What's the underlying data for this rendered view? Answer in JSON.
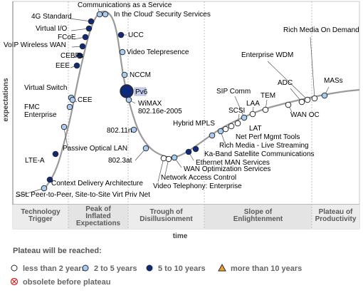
{
  "chart_data": {
    "type": "scatter",
    "title": "",
    "xlabel": "time",
    "ylabel": "expectations",
    "phases": [
      "Technology\nTrigger",
      "Peak of\nInflated\nExpectations",
      "Trough of\nDisillusionment",
      "Slope of\nEnlightenment",
      "Plateau of\nProductivity"
    ],
    "legend": {
      "title": "Plateau will be reached:",
      "items": [
        {
          "key": "lt2",
          "label": "less than 2 years",
          "marker": "circle",
          "color": "#ffffff"
        },
        {
          "key": "2to5",
          "label": "2 to 5 years",
          "marker": "circle",
          "color": "#a9cdf0"
        },
        {
          "key": "5to10",
          "label": "5 to 10 years",
          "marker": "circle",
          "color": "#0f2a7a"
        },
        {
          "key": "gt10",
          "label": "more than 10 years",
          "marker": "triangle",
          "color": "#f0a030"
        },
        {
          "key": "obsolete",
          "label": "obsolete before plateau",
          "marker": "x-circle",
          "color": "#d02020"
        }
      ]
    },
    "points": [
      {
        "label": "SSL Peer-to-Peer, Site-to-Site Virt Priv Net",
        "cat": "2to5",
        "x": 0.03
      },
      {
        "label": "Context Delivery Architecture",
        "cat": "5to10",
        "x": 0.07
      },
      {
        "label": "LTE-A",
        "cat": "5to10",
        "x": 0.115
      },
      {
        "label": "Passive Optical LAN",
        "cat": "2to5",
        "x": 0.145
      },
      {
        "label": "FMC\nEnterprise",
        "cat": "2to5",
        "x": 0.175
      },
      {
        "label": "Virtual Switch",
        "cat": "2to5",
        "x": 0.182
      },
      {
        "label": "CEE",
        "cat": "2to5",
        "x": 0.19
      },
      {
        "label": "EEE",
        "cat": "5to10",
        "x": 0.205
      },
      {
        "label": "CEBPs",
        "cat": "5to10",
        "x": 0.21
      },
      {
        "label": "VoIP Wireless WAN",
        "cat": "5to10",
        "x": 0.215
      },
      {
        "label": "FCoE",
        "cat": "5to10",
        "x": 0.222
      },
      {
        "label": "Virtual I/O",
        "cat": "5to10",
        "x": 0.232
      },
      {
        "label": "4G Standard",
        "cat": "5to10",
        "x": 0.24
      },
      {
        "label": "Communications as a Service",
        "cat": "2to5",
        "x": 0.26
      },
      {
        "label": "In the Cloud' Security Services",
        "cat": "2to5",
        "x": 0.275
      },
      {
        "label": "UCC",
        "cat": "5to10",
        "x": 0.31
      },
      {
        "label": "Video Telepresence",
        "cat": "2to5",
        "x": 0.318
      },
      {
        "label": "NCCM",
        "cat": "2to5",
        "x": 0.33
      },
      {
        "label": "Pv6",
        "cat": "5to10",
        "x": 0.338,
        "big": true
      },
      {
        "label": "WiMAX\n802.16e-2005",
        "cat": "2to5",
        "x": 0.345
      },
      {
        "label": "802.11n",
        "cat": "2to5",
        "x": 0.37
      },
      {
        "label": "802.3at",
        "cat": "2to5",
        "x": 0.39
      },
      {
        "label": "Video Telephony: Enterprise",
        "cat": "lt2",
        "x": 0.435
      },
      {
        "label": "Network Access Control",
        "cat": "lt2",
        "x": 0.455
      },
      {
        "label": "WAN Optimization Services",
        "cat": "2to5",
        "x": 0.478
      },
      {
        "label": "Ethernet MAN Services",
        "cat": "5to10",
        "x": 0.5
      },
      {
        "label": "Ka-Band Satellite Communications",
        "cat": "5to10",
        "x": 0.52
      },
      {
        "label": "Hybrid MPLS",
        "cat": "2to5",
        "x": 0.57
      },
      {
        "label": "Rich Media - Live Streaming",
        "cat": "2to5",
        "x": 0.6
      },
      {
        "label": "Net Perf Mgmt Tools",
        "cat": "lt2",
        "x": 0.615
      },
      {
        "label": "LAT",
        "cat": "lt2",
        "x": 0.625
      },
      {
        "label": "SCSI",
        "cat": "lt2",
        "x": 0.637
      },
      {
        "label": "SIP Comm",
        "cat": "2to5",
        "x": 0.65
      },
      {
        "label": "LAA",
        "cat": "lt2",
        "x": 0.665
      },
      {
        "label": "TEM",
        "cat": "lt2",
        "x": 0.69
      },
      {
        "label": "WAN OC",
        "cat": "lt2",
        "x": 0.72
      },
      {
        "label": "ADC",
        "cat": "lt2",
        "x": 0.76
      },
      {
        "label": "Enterprise WDM",
        "cat": "lt2",
        "x": 0.79
      },
      {
        "label": "Rich Media On Demand",
        "cat": "lt2",
        "x": 0.81
      },
      {
        "label": "MASs",
        "cat": "2to5",
        "x": 0.86
      }
    ]
  }
}
